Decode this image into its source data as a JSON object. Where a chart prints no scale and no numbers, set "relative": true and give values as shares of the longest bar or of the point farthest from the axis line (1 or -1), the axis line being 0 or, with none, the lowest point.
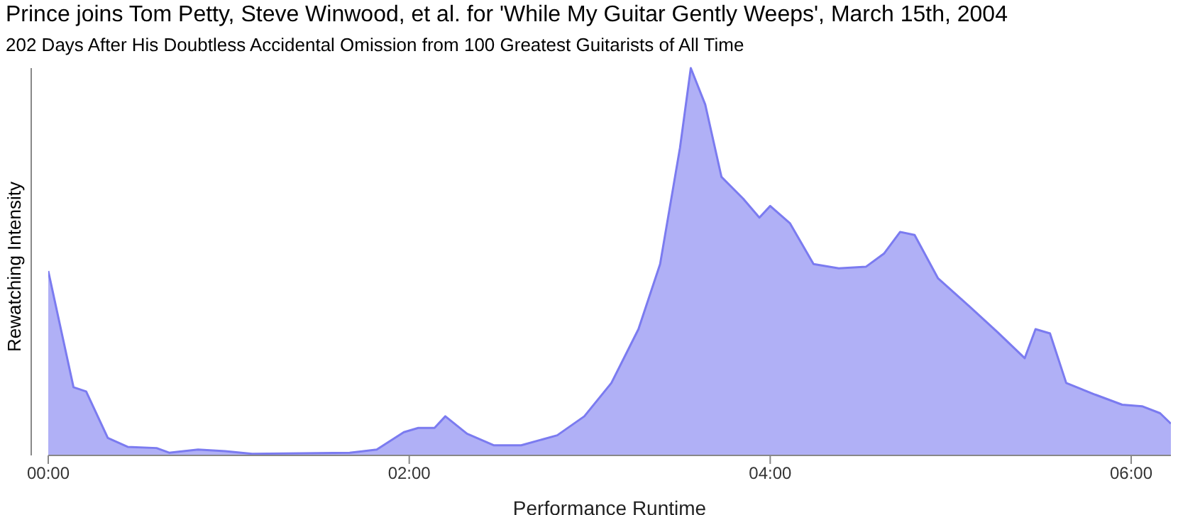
{
  "chart_data": {
    "type": "area",
    "title": "Prince joins Tom Petty, Steve Winwood, et al. for 'While My Guitar Gently Weeps', March 15th, 2004",
    "subtitle": "202 Days After His Doubtless Accidental Omission from 100 Greatest Guitarists of All Time",
    "xlabel": "Performance Runtime",
    "ylabel": "Rewatching Intensity",
    "relative": true,
    "x": [
      0,
      0.14,
      0.21,
      0.33,
      0.44,
      0.6,
      0.67,
      0.83,
      0.98,
      1.13,
      1.67,
      1.82,
      1.97,
      2.05,
      2.14,
      2.2,
      2.32,
      2.47,
      2.62,
      2.82,
      2.97,
      3.12,
      3.27,
      3.39,
      3.5,
      3.56,
      3.64,
      3.73,
      3.85,
      3.94,
      4.0,
      4.11,
      4.24,
      4.38,
      4.53,
      4.63,
      4.72,
      4.8,
      4.93,
      5.11,
      5.26,
      5.41,
      5.47,
      5.55,
      5.64,
      5.8,
      5.95,
      6.06,
      6.16,
      6.22
    ],
    "xlim": [
      0,
      6.22
    ],
    "xticks": [
      {
        "value": 0,
        "label": "00:00"
      },
      {
        "value": 2,
        "label": "02:00"
      },
      {
        "value": 4,
        "label": "04:00"
      },
      {
        "value": 6,
        "label": "06:00"
      }
    ],
    "series": [
      {
        "color": "#7b7bf0",
        "values": [
          0.476,
          0.176,
          0.165,
          0.045,
          0.022,
          0.019,
          0.007,
          0.015,
          0.011,
          0.004,
          0.007,
          0.015,
          0.06,
          0.071,
          0.071,
          0.101,
          0.056,
          0.026,
          0.026,
          0.052,
          0.101,
          0.187,
          0.326,
          0.494,
          0.794,
          1,
          0.906,
          0.719,
          0.663,
          0.614,
          0.644,
          0.599,
          0.494,
          0.483,
          0.487,
          0.521,
          0.577,
          0.569,
          0.457,
          0.382,
          0.318,
          0.251,
          0.326,
          0.315,
          0.187,
          0.157,
          0.131,
          0.127,
          0.109,
          0.082
        ]
      }
    ]
  }
}
